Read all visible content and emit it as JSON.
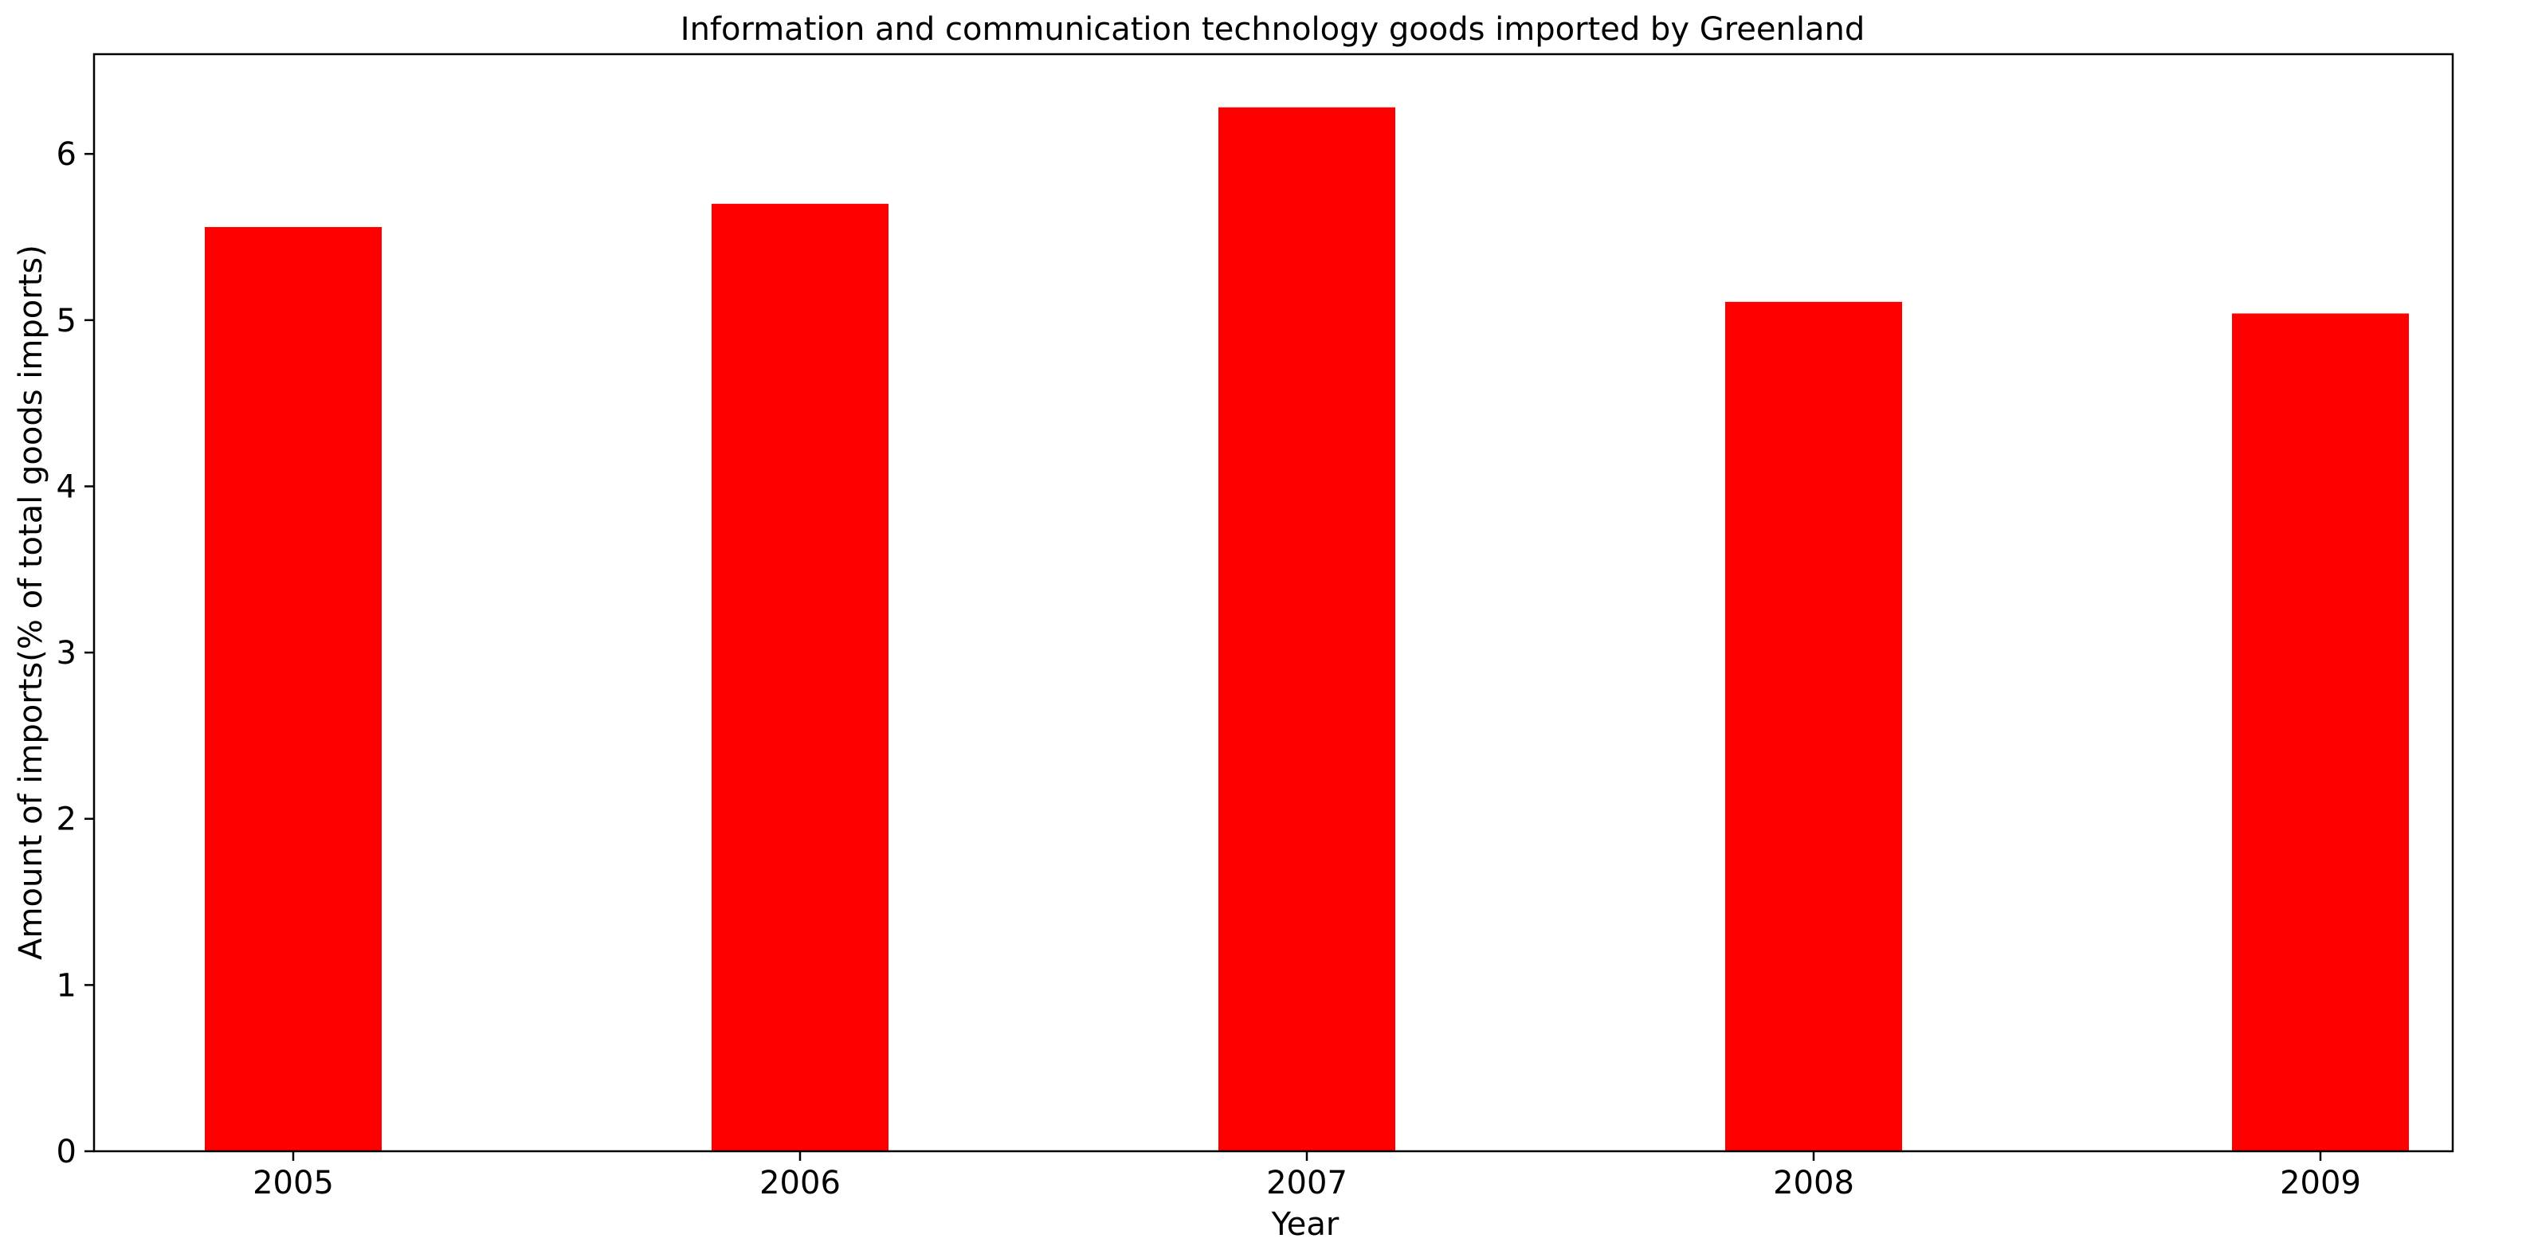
{
  "chart_data": {
    "type": "bar",
    "title": "Information and communication technology goods imported by Greenland",
    "xlabel": "Year",
    "ylabel": "Amount of imports(% of total goods imports)",
    "categories": [
      "2005",
      "2006",
      "2007",
      "2008",
      "2009"
    ],
    "values": [
      5.56,
      5.7,
      6.28,
      5.11,
      5.04
    ],
    "ylim": [
      0,
      6.6
    ],
    "yticks": [
      0,
      1,
      2,
      3,
      4,
      5,
      6
    ],
    "bar_color": "#ff0000",
    "grid": false,
    "legend": "none"
  }
}
